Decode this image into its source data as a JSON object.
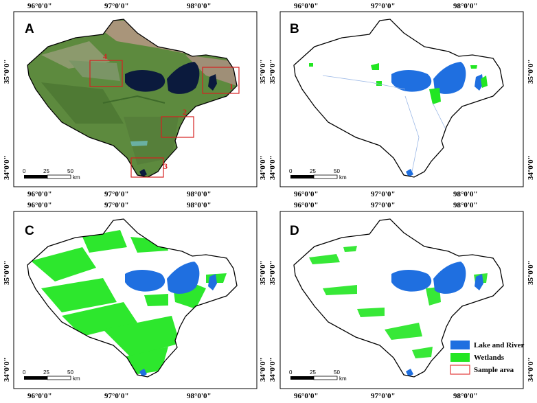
{
  "figure": {
    "top_lon_labels": [
      "96°0'0\"",
      "97°0'0\"",
      "98°0'0\""
    ],
    "lat_labels": [
      "35°0'0\"",
      "34°0'0\""
    ],
    "scalebar": {
      "ticks": [
        "0",
        "25",
        "50"
      ],
      "unit": "km"
    },
    "panels": [
      {
        "letter": "A",
        "type": "satellite"
      },
      {
        "letter": "B",
        "type": "classification"
      },
      {
        "letter": "C",
        "type": "classification"
      },
      {
        "letter": "D",
        "type": "classification"
      }
    ],
    "sample_areas": [
      "1",
      "2",
      "3",
      "4"
    ],
    "legend": [
      {
        "label": "Lake and River",
        "color": "#1f6fe0"
      },
      {
        "label": "Wetlands",
        "color": "#22e622"
      },
      {
        "label": "Sample area",
        "color": "#e23b3b"
      }
    ]
  },
  "colors": {
    "lake": "#1f6fe0",
    "wetland": "#22e622",
    "sample": "#d62020",
    "satellite_base": "#5d8a3e",
    "satellite_dark_lake": "#0b1a3d"
  }
}
